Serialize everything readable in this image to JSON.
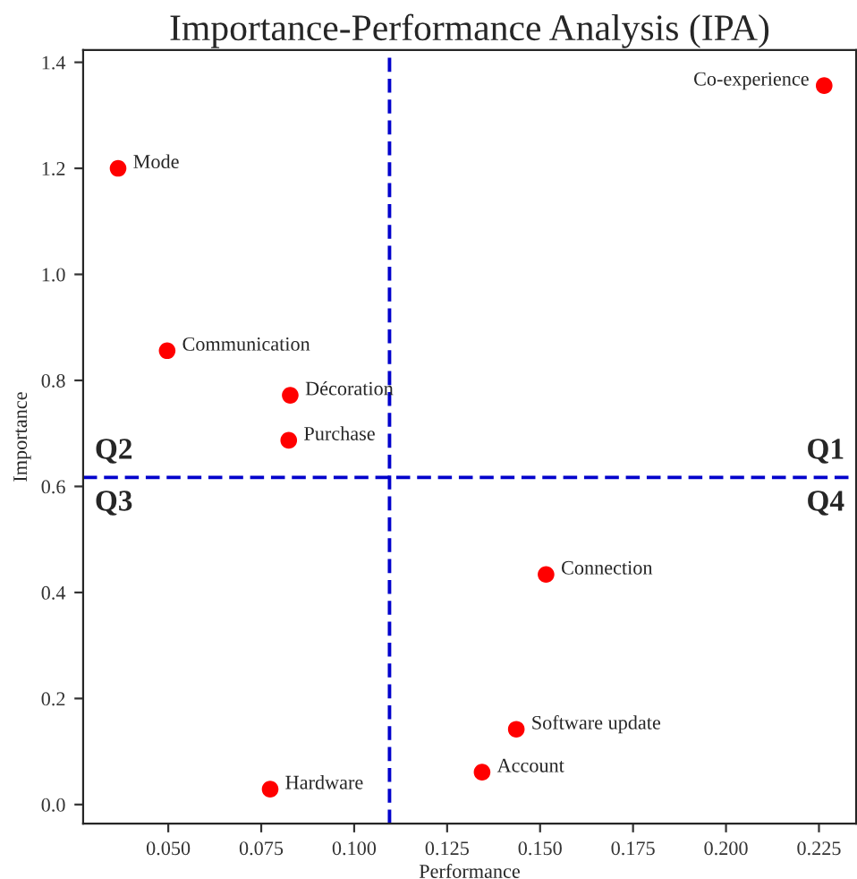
{
  "chart_data": {
    "type": "scatter",
    "title": "Importance-Performance Analysis (IPA)",
    "xlabel": "Performance",
    "ylabel": "Importance",
    "x": [
      0.0365,
      0.0497,
      0.0828,
      0.0824,
      0.2264,
      0.1516,
      0.1436,
      0.1344,
      0.0774
    ],
    "series": [
      {
        "color": "#ff0000",
        "values": [
          1.2,
          0.856,
          0.772,
          0.687,
          1.356,
          0.434,
          0.142,
          0.061,
          0.029
        ]
      }
    ],
    "marker": "circle",
    "xlim": [
      0.0271,
      0.235
    ],
    "xticks": [
      {
        "value": 0.05,
        "label": "0.050"
      },
      0.075,
      {
        "value": 0.1,
        "label": "0.100"
      },
      0.125,
      {
        "value": 0.15,
        "label": "0.150"
      },
      0.175,
      {
        "value": 0.2,
        "label": "0.200"
      },
      0.225
    ],
    "ylim": [
      -0.036,
      1.423
    ],
    "yticks": [
      {
        "value": 0,
        "label": "0.0"
      },
      0.2,
      0.4,
      0.6,
      0.8,
      {
        "value": 1,
        "label": "1.0"
      },
      1.2,
      1.4
    ],
    "ref_lines": [
      {
        "axis": "x",
        "value": 0.1095,
        "color": "#0000cc",
        "line_style": "dashed"
      },
      {
        "axis": "y",
        "value": 0.617,
        "color": "#0000cc",
        "line_style": "dashed"
      }
    ],
    "annotations": [
      {
        "text": "Mode",
        "x": 0.0365,
        "y": 1.2
      },
      {
        "text": "Communication",
        "x": 0.0497,
        "y": 0.856
      },
      {
        "text": "Décoration",
        "x": 0.0828,
        "y": 0.772
      },
      {
        "text": "Purchase",
        "x": 0.0824,
        "y": 0.687
      },
      {
        "text": "Co-experience",
        "x": 0.2264,
        "y": 1.356
      },
      {
        "text": "Connection",
        "x": 0.1516,
        "y": 0.434
      },
      {
        "text": "Software update",
        "x": 0.1436,
        "y": 0.142
      },
      {
        "text": "Account",
        "x": 0.1344,
        "y": 0.061
      },
      {
        "text": "Hardware",
        "x": 0.0774,
        "y": 0.029
      },
      "Q1",
      "Q2",
      "Q3",
      "Q4"
    ],
    "grid": false,
    "legend": false
  }
}
